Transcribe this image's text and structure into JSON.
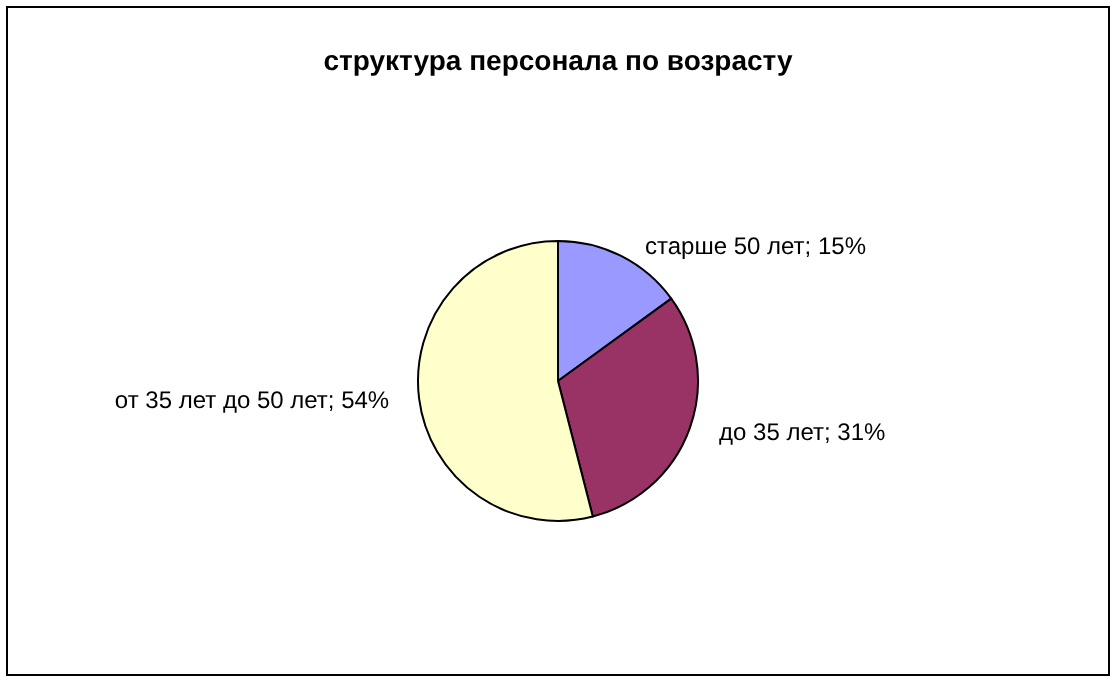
{
  "chart_data": {
    "type": "pie",
    "title": "структура персонала по возрасту",
    "categories": [
      "старше 50 лет",
      "до 35 лет",
      "от 35 лет до 50 лет"
    ],
    "values": [
      15,
      31,
      54
    ],
    "value_labels": [
      "15%",
      "31%",
      "54%"
    ],
    "colors": [
      "#9999ff",
      "#993366",
      "#ffffcc"
    ],
    "legend": false
  }
}
